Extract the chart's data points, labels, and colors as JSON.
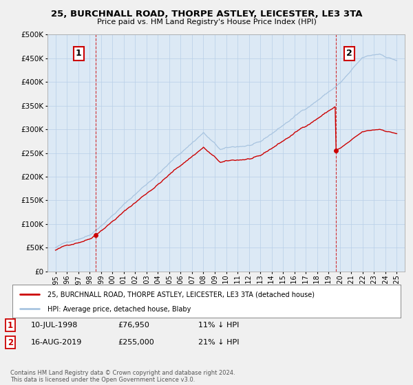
{
  "title": "25, BURCHNALL ROAD, THORPE ASTLEY, LEICESTER, LE3 3TA",
  "subtitle": "Price paid vs. HM Land Registry's House Price Index (HPI)",
  "legend_entry1": "25, BURCHNALL ROAD, THORPE ASTLEY, LEICESTER, LE3 3TA (detached house)",
  "legend_entry2": "HPI: Average price, detached house, Blaby",
  "annotation1_label": "1",
  "annotation1_date": "10-JUL-1998",
  "annotation1_price": 76950,
  "annotation1_hpi": "11% ↓ HPI",
  "annotation2_label": "2",
  "annotation2_date": "16-AUG-2019",
  "annotation2_price": 255000,
  "annotation2_hpi": "21% ↓ HPI",
  "footer": "Contains HM Land Registry data © Crown copyright and database right 2024.\nThis data is licensed under the Open Government Licence v3.0.",
  "ylim_min": 0,
  "ylim_max": 500000,
  "hpi_color": "#a8c4e0",
  "price_color": "#cc0000",
  "background_color": "#eef4fb",
  "plot_bg_color": "#dce9f5",
  "grid_color": "#b8cfe8",
  "annotation_box_color": "#cc0000"
}
